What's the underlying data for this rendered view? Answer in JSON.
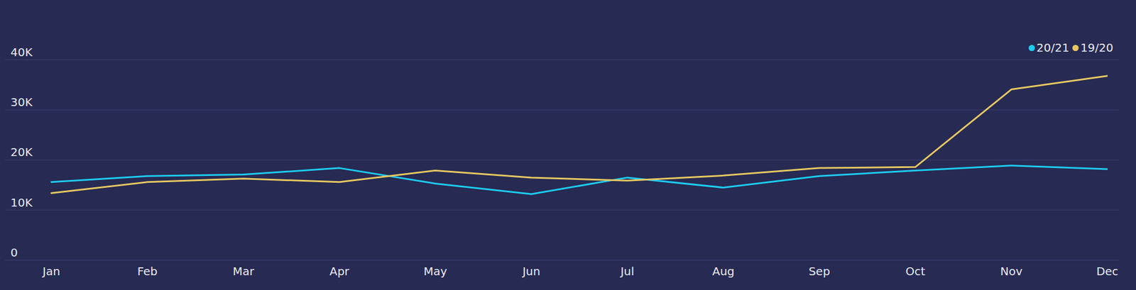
{
  "chart_data": {
    "type": "line",
    "categories": [
      "Jan",
      "Feb",
      "Mar",
      "Apr",
      "May",
      "Jun",
      "Jul",
      "Aug",
      "Sep",
      "Oct",
      "Nov",
      "Dec"
    ],
    "series": [
      {
        "name": "20/21",
        "color": "#1ecbf0",
        "values": [
          15600,
          16800,
          17100,
          18400,
          15300,
          13200,
          16500,
          14500,
          16800,
          17900,
          18900,
          18200
        ]
      },
      {
        "name": "19/20",
        "color": "#e6c862",
        "values": [
          13400,
          15600,
          16300,
          15600,
          17900,
          16500,
          15900,
          16900,
          18400,
          18600,
          34100,
          36800
        ]
      }
    ],
    "ylim": [
      0,
      40000
    ],
    "yticks": [
      0,
      {
        "value": 10000,
        "label": "10K"
      },
      {
        "value": 20000,
        "label": "20K"
      },
      {
        "value": 30000,
        "label": "30K"
      },
      {
        "value": 40000,
        "label": "40K"
      }
    ],
    "grid": true,
    "legend": "top-right"
  }
}
